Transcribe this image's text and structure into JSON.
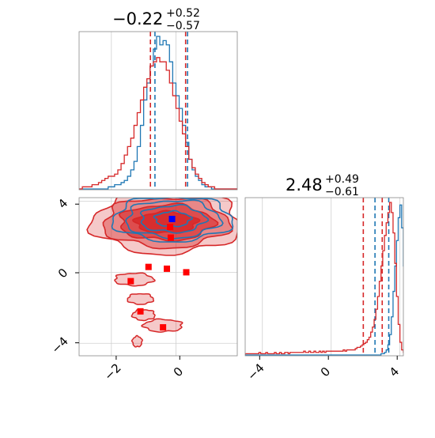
{
  "chart_data": [
    {
      "type": "histogram",
      "panel": "marginal-x",
      "title": {
        "median": "−0.22",
        "plus": "+0.52",
        "minus": "−0.57"
      },
      "xlim": [
        -3.0,
        1.9
      ],
      "grid": true,
      "series": [
        {
          "name": "",
          "color": "#1f77b4",
          "bin_start": -3.0,
          "bin_width": 0.1,
          "counts": [
            0,
            0,
            0,
            0,
            0,
            0,
            0,
            0,
            0,
            1,
            1,
            2,
            2,
            3,
            4,
            6,
            9,
            13,
            20,
            30,
            42,
            50,
            58,
            66,
            72,
            68,
            70,
            68,
            60,
            50,
            44,
            38,
            30,
            22,
            14,
            9,
            6,
            4,
            2,
            1,
            1,
            0,
            0,
            0,
            0,
            0,
            0,
            0,
            0
          ],
          "quantiles": [
            -0.65,
            0.36
          ]
        },
        {
          "name": "",
          "color": "#d62728",
          "bin_start": -3.0,
          "bin_width": 0.1,
          "counts": [
            0,
            1,
            1,
            1,
            2,
            2,
            3,
            4,
            5,
            6,
            6,
            7,
            9,
            12,
            16,
            20,
            24,
            30,
            36,
            42,
            48,
            52,
            58,
            60,
            62,
            60,
            60,
            56,
            50,
            44,
            38,
            32,
            26,
            20,
            14,
            10,
            7,
            5,
            3,
            2,
            1,
            1,
            0,
            0,
            0,
            0,
            0,
            0,
            0
          ],
          "quantiles": [
            -0.79,
            0.3
          ]
        }
      ]
    },
    {
      "type": "histogram",
      "panel": "marginal-y",
      "title": {
        "median": "2.48",
        "plus": "+0.49",
        "minus": "−0.61"
      },
      "xlim": [
        -5.0,
        4.2
      ],
      "grid": true,
      "xticks": [
        "−4",
        "0",
        "4"
      ],
      "series": [
        {
          "name": "",
          "color": "#1f77b4",
          "bin_start": -5.0,
          "bin_width": 0.1,
          "counts": [
            0,
            0,
            0,
            0,
            0,
            0,
            0,
            0,
            0,
            0,
            0,
            0,
            0,
            0,
            0,
            0,
            0,
            0,
            0,
            0,
            0,
            0,
            0,
            0,
            0,
            0,
            0,
            0,
            0,
            0,
            0,
            0,
            0,
            0,
            0,
            0,
            0,
            0,
            0,
            0,
            0,
            0,
            0,
            0,
            0,
            0,
            0,
            0,
            0,
            0,
            0,
            0,
            0,
            0,
            0,
            0,
            0,
            0,
            0,
            0,
            0,
            0,
            0,
            0,
            0,
            0,
            0,
            0,
            0,
            0,
            0,
            0,
            0,
            0,
            0,
            0,
            0,
            0,
            0,
            1,
            1,
            2,
            4,
            8,
            16,
            30,
            50,
            70,
            90,
            108,
            118,
            100,
            70,
            40,
            16,
            6,
            2,
            1,
            0,
            0,
            0,
            0
          ],
          "quantiles": [
            2.55,
            3.35
          ]
        },
        {
          "name": "",
          "color": "#d62728",
          "bin_start": -5.0,
          "bin_width": 0.1,
          "counts": [
            1,
            1,
            1,
            1,
            1,
            1,
            1,
            1,
            2,
            1,
            1,
            1,
            2,
            1,
            1,
            1,
            1,
            2,
            1,
            1,
            2,
            1,
            1,
            2,
            2,
            1,
            2,
            2,
            2,
            2,
            2,
            2,
            2,
            2,
            3,
            2,
            2,
            3,
            2,
            2,
            3,
            2,
            2,
            3,
            2,
            3,
            2,
            3,
            3,
            3,
            3,
            3,
            3,
            3,
            3,
            3,
            3,
            4,
            3,
            4,
            4,
            4,
            4,
            4,
            5,
            6,
            6,
            7,
            8,
            9,
            10,
            12,
            14,
            18,
            22,
            28,
            36,
            46,
            58,
            70,
            82,
            94,
            104,
            112,
            120,
            112,
            96,
            72,
            46,
            24,
            10,
            4,
            2,
            1,
            0,
            0,
            0,
            0,
            0,
            0,
            0,
            0
          ],
          "quantiles": [
            1.87,
            2.97
          ]
        }
      ]
    },
    {
      "type": "contour",
      "panel": "joint",
      "xlim": [
        -3.0,
        1.9
      ],
      "ylim": [
        -4.7,
        4.2
      ],
      "xticks": [
        "−2",
        "0"
      ],
      "yticks": [
        "4",
        "0",
        "−4"
      ],
      "grid": true,
      "series": [
        {
          "name": "",
          "color": "#1f77b4",
          "centers": [
            [
              -0.1,
              3.0
            ]
          ],
          "radii_levels": [
            [
              0.55,
              0.42
            ],
            [
              1.0,
              0.75
            ],
            [
              1.45,
              1.05
            ],
            [
              1.85,
              1.25
            ]
          ]
        },
        {
          "name": "",
          "color": "#d62728",
          "centers": [
            [
              -0.3,
              2.8
            ]
          ],
          "radii_levels": [
            [
              0.95,
              0.6
            ],
            [
              1.45,
              1.0
            ],
            [
              1.95,
              1.4
            ],
            [
              2.3,
              1.75
            ]
          ]
        }
      ],
      "points": [
        {
          "x": -0.12,
          "y": 3.0,
          "color": "#0000ff"
        },
        {
          "x": -0.18,
          "y": 2.55,
          "color": "#ff0000"
        },
        {
          "x": -0.16,
          "y": 1.95,
          "color": "#ff0000"
        },
        {
          "x": -0.85,
          "y": 0.3,
          "color": "#ff0000"
        },
        {
          "x": -0.28,
          "y": 0.2,
          "color": "#ff0000"
        },
        {
          "x": 0.32,
          "y": 0.0,
          "color": "#ff0000"
        },
        {
          "x": -1.4,
          "y": -0.5,
          "color": "#ff0000"
        },
        {
          "x": -1.1,
          "y": -2.2,
          "color": "#ff0000"
        },
        {
          "x": -0.4,
          "y": -3.1,
          "color": "#ff0000"
        }
      ]
    }
  ]
}
